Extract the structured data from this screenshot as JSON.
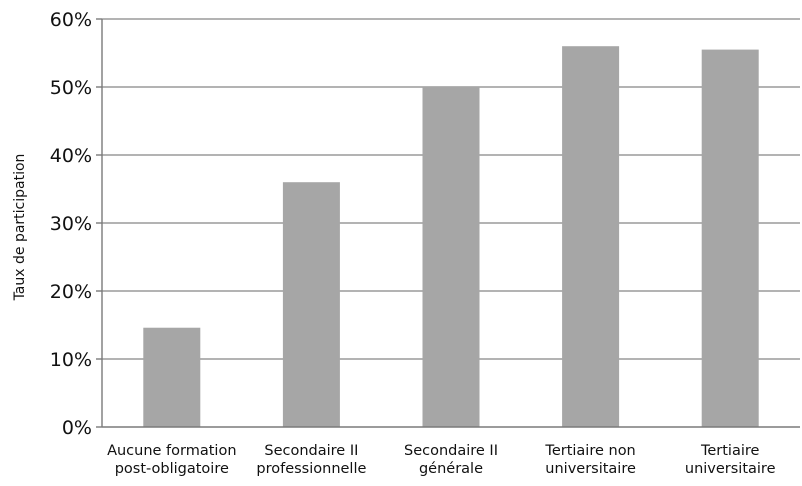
{
  "chart_data": {
    "type": "bar",
    "categories": [
      [
        "Aucune formation",
        "post-obligatoire"
      ],
      [
        "Secondaire II",
        "professionnelle"
      ],
      [
        "Secondaire II",
        "générale"
      ],
      [
        "Tertiaire non",
        "universitaire"
      ],
      [
        "Tertiaire",
        "universitaire"
      ]
    ],
    "values": [
      14.6,
      36.0,
      50.0,
      56.0,
      55.5
    ],
    "ylabel": "Taux de participation",
    "xlabel": "",
    "title": "",
    "ylim": [
      0,
      60
    ],
    "yticks": [
      0,
      10,
      20,
      30,
      40,
      50,
      60
    ],
    "ytick_format": "%",
    "grid": true,
    "bar_color": "#a6a6a6",
    "grid_color": "#9a9a9a"
  }
}
